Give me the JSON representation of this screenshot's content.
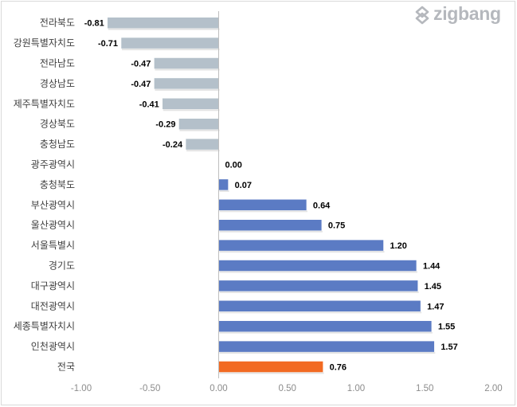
{
  "brand": {
    "logo_text": "zigbang"
  },
  "colors": {
    "negative": "#b4c0ca",
    "positive": "#5b7bc4",
    "total": "#f26a22",
    "axis": "#bfbfbf"
  },
  "chart_data": {
    "type": "bar",
    "orientation": "horizontal",
    "title": "",
    "xlabel": "",
    "ylabel": "",
    "xlim": [
      -1.0,
      2.0
    ],
    "x_ticks": [
      "-1.00",
      "-0.50",
      "0.00",
      "0.50",
      "1.00",
      "1.50",
      "2.00"
    ],
    "x_tick_values": [
      -1.0,
      -0.5,
      0.0,
      0.5,
      1.0,
      1.5,
      2.0
    ],
    "grid": false,
    "legend": "none",
    "categories": [
      "전라북도",
      "강원특별자치도",
      "전라남도",
      "경상남도",
      "제주특별자치도",
      "경상북도",
      "충청남도",
      "광주광역시",
      "충청북도",
      "부산광역시",
      "울산광역시",
      "서울특별시",
      "경기도",
      "대구광역시",
      "대전광역시",
      "세종특별자치시",
      "인천광역시",
      "전국"
    ],
    "values": [
      -0.81,
      -0.71,
      -0.47,
      -0.47,
      -0.41,
      -0.29,
      -0.24,
      0.0,
      0.07,
      0.64,
      0.75,
      1.2,
      1.44,
      1.45,
      1.47,
      1.55,
      1.57,
      0.76
    ],
    "labels": [
      "-0.81",
      "-0.71",
      "-0.47",
      "-0.47",
      "-0.41",
      "-0.29",
      "-0.24",
      "0.00",
      "0.07",
      "0.64",
      "0.75",
      "1.20",
      "1.44",
      "1.45",
      "1.47",
      "1.55",
      "1.57",
      "0.76"
    ],
    "highlight": "전국"
  }
}
